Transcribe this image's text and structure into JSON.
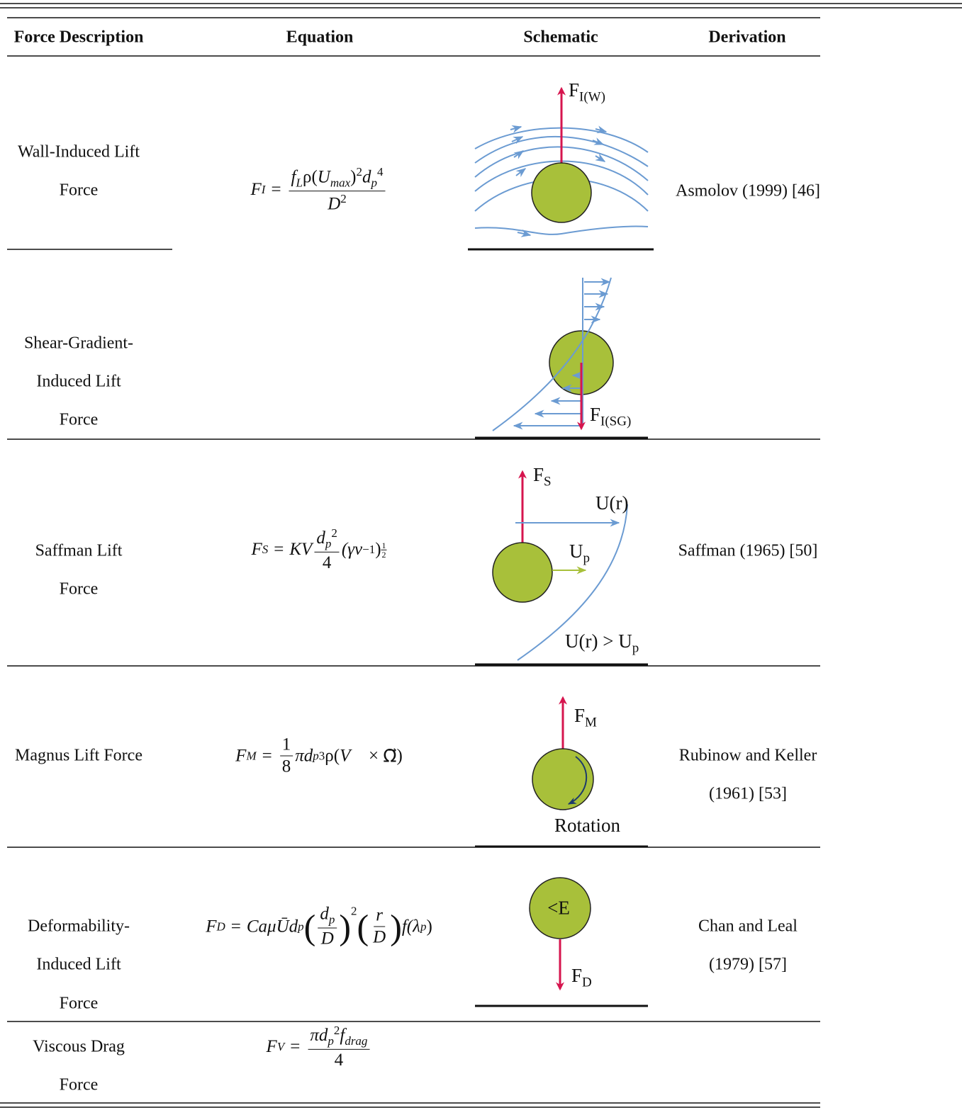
{
  "table": {
    "headers": [
      "Force Description",
      "Equation",
      "Schematic",
      "Derivation"
    ],
    "rows": [
      {
        "description": [
          "Wall-Induced Lift",
          "Force"
        ],
        "equation": [
          "F",
          "I",
          "=",
          "f",
          "L",
          "ρ(",
          "U",
          "max",
          ")",
          "2",
          "d",
          "p",
          "4",
          "D",
          "2"
        ],
        "schematic": [
          "F",
          "I(W)"
        ],
        "derivation": [
          "Asmolov (1999) [46]"
        ]
      },
      {
        "description": [
          "Shear-Gradient-",
          "Induced Lift",
          "Force"
        ],
        "schematic": [
          "F",
          "I(SG)"
        ]
      },
      {
        "description": [
          "Saffman Lift",
          "Force"
        ],
        "equation": [
          "F",
          "S",
          "=",
          "KV",
          "d",
          "p",
          "2",
          "4",
          "(γν",
          "−1",
          ")",
          "1",
          "2"
        ],
        "schematic": [
          "F",
          "S",
          "U(r)",
          "U",
          "p",
          "U(r) > U",
          "p"
        ],
        "derivation": [
          "Saffman (1965) [50]"
        ]
      },
      {
        "description": [
          "Magnus Lift Force"
        ],
        "equation": [
          "F",
          "M",
          "=",
          "1",
          "8",
          "πd",
          "p",
          "3",
          "ρ(",
          "V⃗",
          " × ",
          "Ω⃗",
          ")"
        ],
        "schematic": [
          "F",
          "M",
          "Rotation"
        ],
        "derivation": [
          "Rubinow and Keller",
          "(1961) [53]"
        ]
      },
      {
        "description": [
          "Deformability-",
          "Induced Lift",
          "Force"
        ],
        "equation": [
          "F",
          "D",
          "=",
          "CaμŪd",
          "p",
          "(",
          "d",
          "p",
          "D",
          ")",
          "2",
          "(",
          "r",
          "D",
          ")",
          "f(λ",
          "p",
          ")"
        ],
        "schematic": [
          "<E",
          "F",
          "D"
        ],
        "derivation": [
          "Chan and Leal",
          "(1979) [57]"
        ]
      },
      {
        "description": [
          "Viscous Drag",
          "Force"
        ],
        "equation": [
          "F",
          "V",
          "=",
          "πd",
          "p",
          "2",
          "f",
          "drag",
          "4"
        ]
      }
    ]
  }
}
